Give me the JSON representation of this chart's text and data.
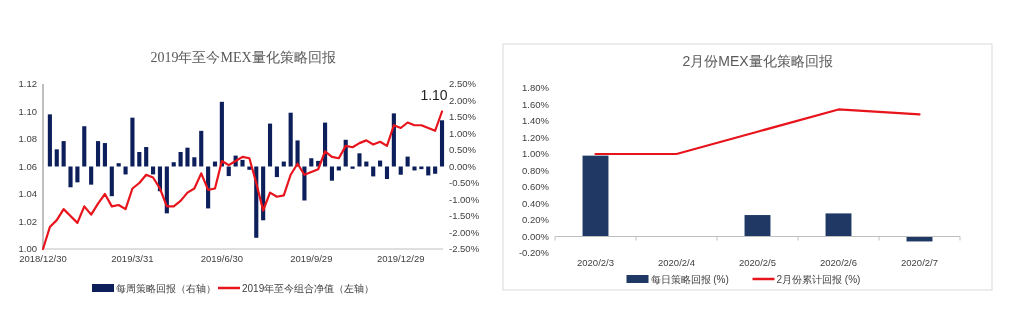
{
  "chart_data": [
    {
      "type": "bar",
      "title": "2019年至今MEX量化策略回报",
      "x": [
        "2019-01-06",
        "2019-01-13",
        "2019-01-20",
        "2019-01-27",
        "2019-02-03",
        "2019-02-10",
        "2019-02-17",
        "2019-02-24",
        "2019-03-03",
        "2019-03-10",
        "2019-03-17",
        "2019-03-24",
        "2019-03-31",
        "2019-04-07",
        "2019-04-14",
        "2019-04-21",
        "2019-04-28",
        "2019-05-05",
        "2019-05-12",
        "2019-05-19",
        "2019-05-26",
        "2019-06-02",
        "2019-06-09",
        "2019-06-16",
        "2019-06-23",
        "2019-06-30",
        "2019-07-07",
        "2019-07-14",
        "2019-07-21",
        "2019-07-28",
        "2019-08-04",
        "2019-08-11",
        "2019-08-18",
        "2019-08-25",
        "2019-09-01",
        "2019-09-08",
        "2019-09-15",
        "2019-09-22",
        "2019-09-29",
        "2019-10-06",
        "2019-10-13",
        "2019-10-20",
        "2019-10-27",
        "2019-11-03",
        "2019-11-10",
        "2019-11-17",
        "2019-11-24",
        "2019-12-01",
        "2019-12-08",
        "2019-12-15",
        "2019-12-22",
        "2019-12-29",
        "2020-01-05",
        "2020-01-12",
        "2020-01-19",
        "2020-01-26",
        "2020-02-02",
        "2020-02-09"
      ],
      "xlim": [
        "2018-12-30",
        "2020-02-10"
      ],
      "xticks": [
        {
          "value": "2018-12-30",
          "label": "2018/12/30"
        },
        {
          "value": "2019-03-31",
          "label": "2019/3/31"
        },
        {
          "value": "2019-06-30",
          "label": "2019/6/30"
        },
        {
          "value": "2019-09-29",
          "label": "2019/9/29"
        },
        {
          "value": "2019-12-29",
          "label": "2019/12/29"
        }
      ],
      "ylim": [
        1.0,
        1.12
      ],
      "yticks": [
        {
          "value": 1.0,
          "label": "1.00"
        },
        {
          "value": 1.02,
          "label": "1.02"
        },
        {
          "value": 1.04,
          "label": "1.04"
        },
        {
          "value": 1.06,
          "label": "1.06"
        },
        {
          "value": 1.08,
          "label": "1.08"
        },
        {
          "value": 1.1,
          "label": "1.10"
        },
        {
          "value": 1.12,
          "label": "1.12"
        }
      ],
      "y2lim": [
        -2.5,
        2.5
      ],
      "y2ticks": [
        {
          "value": -2.5,
          "label": "-2.50%"
        },
        {
          "value": -2,
          "label": "-2.00%"
        },
        {
          "value": -1.5,
          "label": "-1.50%"
        },
        {
          "value": -1,
          "label": "-1.00%"
        },
        {
          "value": -0.5,
          "label": "-0.50%"
        },
        {
          "value": 0,
          "label": "0.00%"
        },
        {
          "value": 0.5,
          "label": "0.50%"
        },
        {
          "value": 1,
          "label": "1.00%"
        },
        {
          "value": 1.5,
          "label": "1.50%"
        },
        {
          "value": 2,
          "label": "2.00%"
        },
        {
          "value": 2.5,
          "label": "2.50%"
        }
      ],
      "series": [
        {
          "name": "每周策略回报（右轴）",
          "axis": "y2",
          "color": "#0c1f5b",
          "values": [
            1.58,
            0.52,
            0.77,
            -0.63,
            -0.48,
            1.22,
            -0.55,
            0.77,
            0.71,
            -0.9,
            0.1,
            -0.24,
            1.48,
            0.44,
            0.59,
            -0.24,
            -0.75,
            -1.42,
            0.13,
            0.44,
            0.57,
            0.28,
            1.08,
            -1.27,
            0.15,
            1.96,
            -0.29,
            0.33,
            0.2,
            -0.1,
            -2.16,
            -1.63,
            1.3,
            -0.32,
            0.15,
            1.63,
            0.79,
            -1.03,
            0.25,
            0.17,
            1.33,
            -0.43,
            -0.12,
            0.81,
            -0.07,
            0.4,
            0.15,
            -0.3,
            0.18,
            -0.38,
            1.61,
            -0.25,
            0.3,
            -0.12,
            -0.08,
            -0.27,
            -0.22,
            1.4
          ]
        },
        {
          "name": "2019年至今组合净值（左轴）",
          "type": "line",
          "color": "#e8141c",
          "x": [
            "2018-12-30",
            "2019-01-06",
            "2019-01-13",
            "2019-01-20",
            "2019-01-27",
            "2019-02-03",
            "2019-02-10",
            "2019-02-17",
            "2019-02-24",
            "2019-03-03",
            "2019-03-10",
            "2019-03-17",
            "2019-03-24",
            "2019-03-31",
            "2019-04-07",
            "2019-04-14",
            "2019-04-21",
            "2019-04-28",
            "2019-05-05",
            "2019-05-12",
            "2019-05-19",
            "2019-05-26",
            "2019-06-02",
            "2019-06-09",
            "2019-06-16",
            "2019-06-23",
            "2019-06-30",
            "2019-07-07",
            "2019-07-14",
            "2019-07-21",
            "2019-07-28",
            "2019-08-04",
            "2019-08-11",
            "2019-08-18",
            "2019-08-25",
            "2019-09-01",
            "2019-09-08",
            "2019-09-15",
            "2019-09-22",
            "2019-09-29",
            "2019-10-06",
            "2019-10-13",
            "2019-10-20",
            "2019-10-27",
            "2019-11-03",
            "2019-11-10",
            "2019-11-17",
            "2019-11-24",
            "2019-12-01",
            "2019-12-08",
            "2019-12-15",
            "2019-12-22",
            "2019-12-29",
            "2020-01-05",
            "2020-01-12",
            "2020-01-19",
            "2020-01-26",
            "2020-02-02",
            "2020-02-09"
          ],
          "values": [
            1.0,
            1.016,
            1.021,
            1.029,
            1.024,
            1.019,
            1.031,
            1.025,
            1.033,
            1.04,
            1.031,
            1.032,
            1.029,
            1.044,
            1.048,
            1.054,
            1.052,
            1.044,
            1.031,
            1.031,
            1.035,
            1.041,
            1.044,
            1.055,
            1.043,
            1.044,
            1.064,
            1.061,
            1.064,
            1.067,
            1.066,
            1.048,
            1.028,
            1.041,
            1.038,
            1.039,
            1.054,
            1.062,
            1.054,
            1.056,
            1.058,
            1.071,
            1.067,
            1.066,
            1.075,
            1.074,
            1.077,
            1.079,
            1.076,
            1.078,
            1.075,
            1.09,
            1.088,
            1.092,
            1.09,
            1.09,
            1.088,
            1.086,
            1.1
          ]
        }
      ],
      "annotations": [
        {
          "text": "1.10",
          "x": "2020-02-09",
          "y": 1.1
        }
      ],
      "legend": "bottom"
    },
    {
      "type": "bar",
      "title": "2月份MEX量化策略回报",
      "categories": [
        "2020/2/3",
        "2020/2/4",
        "2020/2/5",
        "2020/2/6",
        "2020/2/7"
      ],
      "ylim": [
        -0.2,
        1.8
      ],
      "yticks": [
        {
          "value": -0.2,
          "label": "-0.20%"
        },
        {
          "value": 0,
          "label": "0.00%"
        },
        {
          "value": 0.2,
          "label": "0.20%"
        },
        {
          "value": 0.4,
          "label": "0.40%"
        },
        {
          "value": 0.6,
          "label": "0.60%"
        },
        {
          "value": 0.8,
          "label": "0.80%"
        },
        {
          "value": 1.0,
          "label": "1.00%"
        },
        {
          "value": 1.2,
          "label": "1.20%"
        },
        {
          "value": 1.4,
          "label": "1.40%"
        },
        {
          "value": 1.6,
          "label": "1.60%"
        },
        {
          "value": 1.8,
          "label": "1.80%"
        }
      ],
      "series": [
        {
          "name": "每日策略回报 (%)",
          "color": "#203864",
          "values": [
            0.98,
            0,
            0.26,
            0.28,
            -0.06
          ]
        },
        {
          "name": "2月份累计回报 (%)",
          "type": "line",
          "color": "#e8141c",
          "values": [
            1.0,
            1.0,
            1.27,
            1.54,
            1.48
          ]
        }
      ],
      "legend": "bottom"
    }
  ]
}
